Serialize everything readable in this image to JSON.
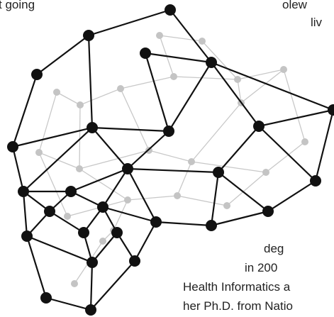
{
  "text_fragments": [
    "t going",
    "olew",
    "liv",
    "deg",
    "in 200",
    "Health Informatics a",
    "her Ph.D. from Natio"
  ]
}
